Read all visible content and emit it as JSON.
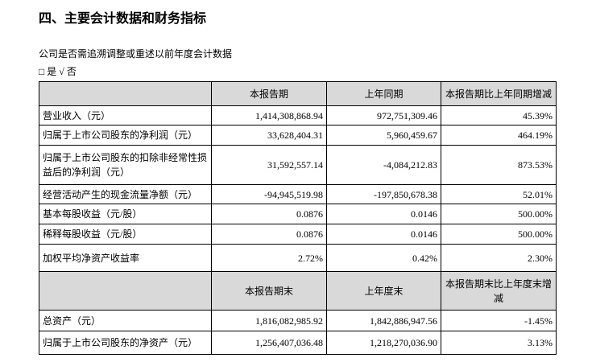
{
  "title": "四、主要会计数据和财务指标",
  "question": "公司是否需追溯调整或重述以前年度会计数据",
  "options": "□ 是 √ 否",
  "table": {
    "header": [
      "本报告期",
      "上年同期",
      "本报告期比上年同期增减"
    ],
    "rows": [
      [
        "营业收入（元）",
        "1,414,308,868.94",
        "972,751,309.46",
        "45.39%"
      ],
      [
        "归属于上市公司股东的净利润（元）",
        "33,628,404.31",
        "5,960,459.67",
        "464.19%"
      ],
      [
        "归属于上市公司股东的扣除非经常性损益后的净利润（元）",
        "31,592,557.14",
        "-4,084,212.83",
        "873.53%"
      ],
      [
        "经营活动产生的现金流量净额（元）",
        "-94,945,519.98",
        "-197,850,678.38",
        "52.01%"
      ],
      [
        "基本每股收益（元/股）",
        "0.0876",
        "0.0146",
        "500.00%"
      ],
      [
        "稀释每股收益（元/股）",
        "0.0876",
        "0.0146",
        "500.00%"
      ],
      [
        "加权平均净资产收益率",
        "2.72%",
        "0.42%",
        "2.30%"
      ]
    ],
    "header2": [
      "本报告期末",
      "上年度末",
      "本报告期末比上年度末增减"
    ],
    "rows2": [
      [
        "总资产（元）",
        "1,816,082,985.92",
        "1,842,886,947.56",
        "-1.45%"
      ],
      [
        "归属于上市公司股东的净资产（元）",
        "1,256,407,036.48",
        "1,218,270,036.90",
        "3.13%"
      ]
    ]
  }
}
